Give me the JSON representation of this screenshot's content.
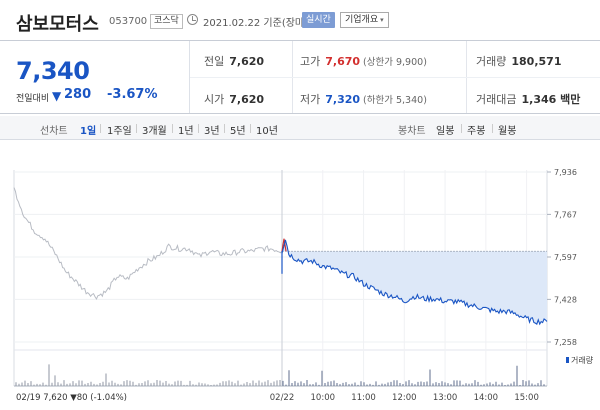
{
  "header": {
    "stock_name": "삼보모터스",
    "stock_code": "053700",
    "market": "코스닥",
    "date_text": "2021.02.22 기준(장마감)",
    "realtime_label": "실시간",
    "company_button": "기업개요",
    "company_caret": "▾"
  },
  "summary": {
    "price": "7,340",
    "change_label": "전일대비",
    "change_arrow": "▼",
    "change_value": "280",
    "change_pct": "-3.67%",
    "prev_close": {
      "label": "전일",
      "value": "7,620"
    },
    "open": {
      "label": "시가",
      "value": "7,620"
    },
    "high": {
      "label": "고가",
      "value": "7,670",
      "limit": "(상한가 9,900)"
    },
    "low": {
      "label": "저가",
      "value": "7,320",
      "limit": "(하한가 5,340)"
    },
    "volume": {
      "label": "거래량",
      "value": "180,571"
    },
    "amount": {
      "label": "거래대금",
      "value": "1,346 백만"
    }
  },
  "tabs": {
    "line_label": "선차트",
    "line_items": [
      "1일",
      "1주일",
      "3개월",
      "1년",
      "3년",
      "5년",
      "10년"
    ],
    "candle_label": "봉차트",
    "candle_items": [
      "일봉",
      "주봉",
      "월봉"
    ]
  },
  "colors": {
    "accent": "#1a55c4",
    "up": "#d3302f",
    "down": "#1a55c4",
    "fill": "#dde8f8"
  },
  "chart_data": {
    "type": "line",
    "title": "",
    "y_ticks": [
      "7,936",
      "7,767",
      "7,597",
      "7,428",
      "7,258"
    ],
    "ylim": [
      7258,
      7936
    ],
    "x_ticks": [
      "02/22",
      "10:00",
      "11:00",
      "12:00",
      "13:00",
      "14:00",
      "15:00"
    ],
    "reference_price": 7620,
    "volume_label": "거래량",
    "footer": "02/19  7,620 ▼80 (-1.04%)",
    "prev_day": {
      "x": [
        "09:00",
        "09:15",
        "09:30",
        "09:45",
        "10:00",
        "10:15",
        "10:30",
        "10:45",
        "11:00",
        "11:15",
        "11:30",
        "11:45",
        "12:00",
        "12:15",
        "12:30",
        "12:45",
        "13:00",
        "13:15",
        "13:30",
        "13:45",
        "14:00",
        "14:15",
        "14:30",
        "14:45",
        "15:00",
        "15:15",
        "15:30"
      ],
      "price": [
        7870,
        7760,
        7700,
        7670,
        7610,
        7540,
        7500,
        7460,
        7440,
        7460,
        7520,
        7510,
        7550,
        7580,
        7600,
        7640,
        7630,
        7630,
        7600,
        7620,
        7610,
        7610,
        7620,
        7620,
        7630,
        7630,
        7620
      ]
    },
    "today": {
      "x": [
        "09:00",
        "09:05",
        "09:10",
        "09:20",
        "09:30",
        "09:45",
        "10:00",
        "10:15",
        "10:30",
        "10:45",
        "11:00",
        "11:15",
        "11:30",
        "11:45",
        "12:00",
        "12:15",
        "12:30",
        "12:45",
        "13:00",
        "13:15",
        "13:30",
        "13:45",
        "14:00",
        "14:15",
        "14:30",
        "14:45",
        "15:00",
        "15:15",
        "15:30"
      ],
      "price": [
        7620,
        7670,
        7610,
        7590,
        7580,
        7580,
        7560,
        7550,
        7530,
        7520,
        7490,
        7470,
        7450,
        7440,
        7420,
        7440,
        7430,
        7430,
        7420,
        7420,
        7410,
        7400,
        7390,
        7380,
        7380,
        7370,
        7350,
        7340,
        7340
      ]
    }
  }
}
